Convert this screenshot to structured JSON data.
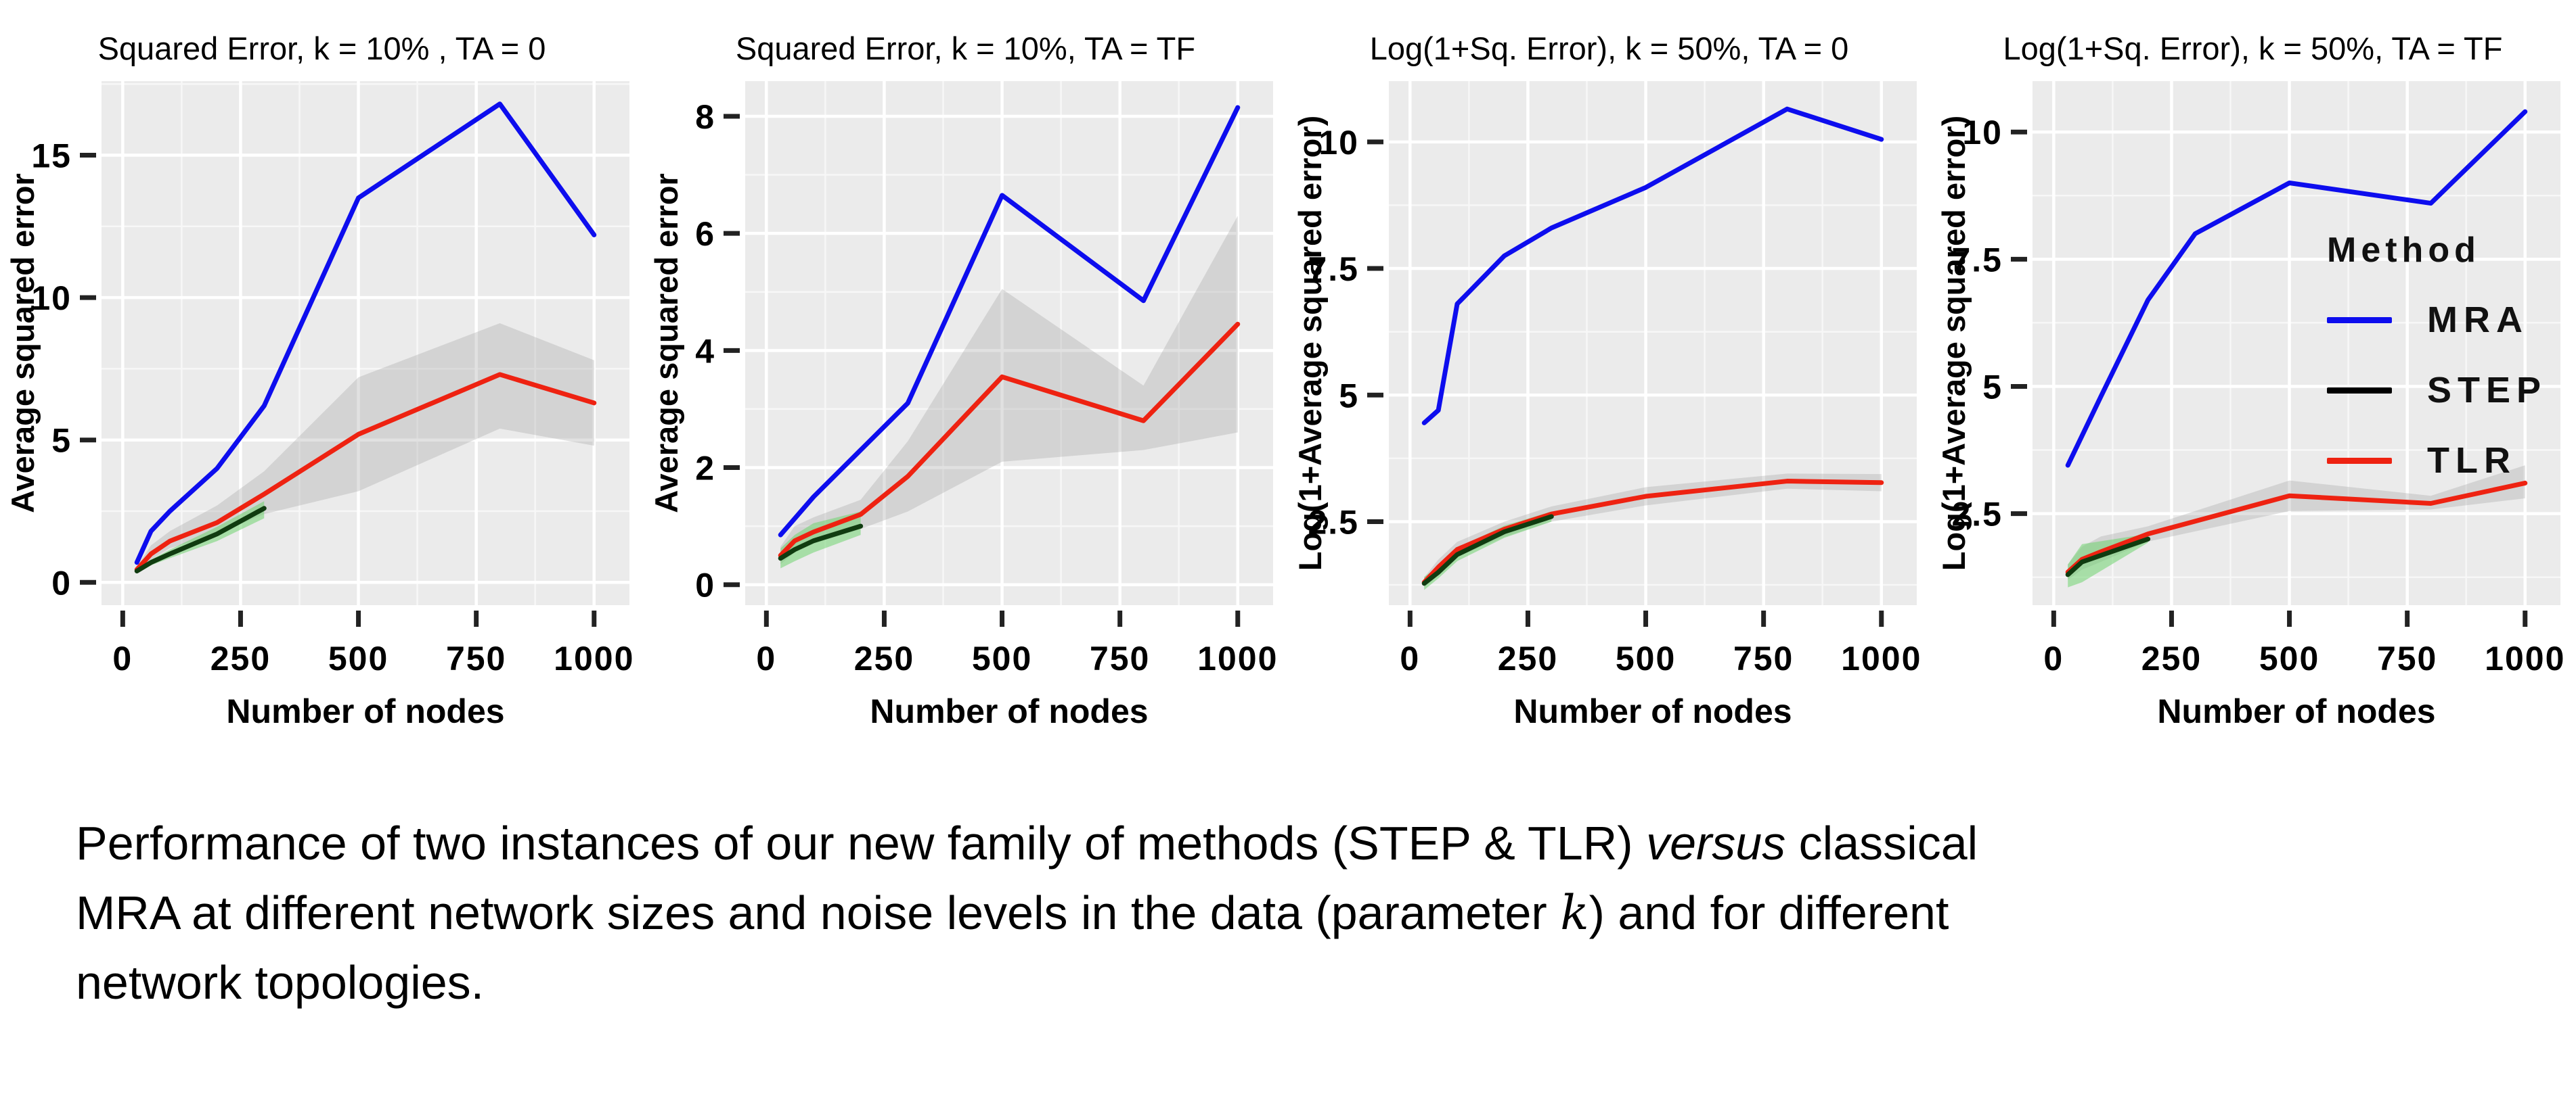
{
  "legend": {
    "title": "Method",
    "items": [
      {
        "label": "MRA",
        "color": "#0d0dee"
      },
      {
        "label": "STEP",
        "color": "#000000"
      },
      {
        "label": "TLR",
        "color": "#ee2211"
      }
    ]
  },
  "caption": {
    "lines": [
      [
        {
          "t": "Performance of two instances of our new family of methods (STEP & TLR) "
        },
        {
          "t": "versus",
          "em": true
        },
        {
          "t": " classical"
        }
      ],
      [
        {
          "t": "MRA at different network sizes and noise levels in the data (parameter "
        },
        {
          "t": "k",
          "math": true
        },
        {
          "t": ") and for different"
        }
      ],
      [
        {
          "t": "network topologies."
        }
      ]
    ]
  },
  "chart_data": [
    {
      "type": "line",
      "title": "Squared Error, k = 10% , TA = 0",
      "xlabel": "Number of nodes",
      "ylabel": "Average squared error",
      "xlim": [
        -45,
        1075
      ],
      "ylim": [
        -0.8,
        17.6
      ],
      "xticks": [
        0,
        250,
        500,
        750,
        1000
      ],
      "xtick_labels": [
        "0",
        "250",
        "500",
        "750",
        "1000"
      ],
      "yticks": [
        0,
        5,
        10,
        15
      ],
      "ytick_labels": [
        "0",
        "5",
        "10",
        "15"
      ],
      "x_minor": [
        125,
        375,
        625,
        875
      ],
      "y_minor": [
        2.5,
        7.5,
        12.5,
        17.5
      ],
      "grid": true,
      "panel_bg": "#ebebeb",
      "legend_position": "none",
      "series": [
        {
          "name": "TLR",
          "color": "#ee2211",
          "x": [
            30,
            60,
            100,
            200,
            300,
            500,
            800,
            1000
          ],
          "values": [
            0.45,
            1.0,
            1.45,
            2.1,
            3.1,
            5.2,
            7.3,
            6.3
          ],
          "band": {
            "lower": [
              0.35,
              0.8,
              1.2,
              1.7,
              2.4,
              3.2,
              5.4,
              4.8
            ],
            "upper": [
              0.55,
              1.3,
              1.8,
              2.7,
              3.9,
              7.2,
              9.1,
              7.8
            ],
            "color": "#9a9a9a",
            "opacity": 0.3
          }
        },
        {
          "name": "STEP",
          "color": "#103c10",
          "x": [
            30,
            60,
            100,
            200,
            300
          ],
          "values": [
            0.4,
            0.7,
            1.0,
            1.7,
            2.6
          ],
          "band": {
            "lower": [
              0.33,
              0.6,
              0.85,
              1.45,
              2.25
            ],
            "upper": [
              0.47,
              0.8,
              1.15,
              1.95,
              2.85
            ],
            "color": "#6fd36f",
            "opacity": 0.55
          }
        },
        {
          "name": "MRA",
          "color": "#0d0dee",
          "x": [
            30,
            60,
            100,
            200,
            300,
            500,
            800,
            1000
          ],
          "values": [
            0.7,
            1.8,
            2.5,
            4.0,
            6.2,
            13.5,
            16.8,
            12.2
          ]
        }
      ]
    },
    {
      "type": "line",
      "title": "Squared Error, k = 10%, TA = TF",
      "xlabel": "Number of nodes",
      "ylabel": "Average squared error",
      "xlim": [
        -45,
        1075
      ],
      "ylim": [
        -0.35,
        8.6
      ],
      "xticks": [
        0,
        250,
        500,
        750,
        1000
      ],
      "xtick_labels": [
        "0",
        "250",
        "500",
        "750",
        "1000"
      ],
      "yticks": [
        0,
        2,
        4,
        6,
        8
      ],
      "ytick_labels": [
        "0",
        "2",
        "4",
        "6",
        "8"
      ],
      "x_minor": [
        125,
        375,
        625,
        875
      ],
      "y_minor": [
        1,
        3,
        5,
        7
      ],
      "grid": true,
      "panel_bg": "#ebebeb",
      "legend_position": "none",
      "series": [
        {
          "name": "TLR",
          "color": "#ee2211",
          "x": [
            30,
            60,
            100,
            200,
            300,
            500,
            800,
            1000
          ],
          "values": [
            0.5,
            0.75,
            0.9,
            1.2,
            1.85,
            3.55,
            2.8,
            4.45
          ],
          "band": {
            "lower": [
              0.35,
              0.55,
              0.7,
              0.95,
              1.25,
              2.1,
              2.3,
              2.6
            ],
            "upper": [
              0.65,
              1.0,
              1.15,
              1.45,
              2.45,
              5.05,
              3.4,
              6.3
            ],
            "color": "#9a9a9a",
            "opacity": 0.3
          }
        },
        {
          "name": "STEP",
          "color": "#103c10",
          "x": [
            30,
            60,
            100,
            200
          ],
          "values": [
            0.45,
            0.6,
            0.75,
            1.0
          ],
          "band": {
            "lower": [
              0.28,
              0.4,
              0.55,
              0.85
            ],
            "upper": [
              0.62,
              0.85,
              1.05,
              1.25
            ],
            "color": "#6fd36f",
            "opacity": 0.55
          }
        },
        {
          "name": "MRA",
          "color": "#0d0dee",
          "x": [
            30,
            100,
            200,
            300,
            500,
            800,
            1000
          ],
          "values": [
            0.85,
            1.5,
            2.3,
            3.1,
            6.65,
            4.85,
            8.15
          ]
        }
      ]
    },
    {
      "type": "line",
      "title": "Log(1+Sq. Error), k = 50%, TA = 0",
      "xlabel": "Number of nodes",
      "ylabel": "Log(1+Average squared error)",
      "xlim": [
        -45,
        1075
      ],
      "ylim": [
        0.85,
        11.2
      ],
      "xticks": [
        0,
        250,
        500,
        750,
        1000
      ],
      "xtick_labels": [
        "0",
        "250",
        "500",
        "750",
        "1000"
      ],
      "yticks": [
        2.5,
        5,
        7.5,
        10
      ],
      "ytick_labels": [
        "2.5",
        "5",
        "7.5",
        "10"
      ],
      "x_minor": [
        125,
        375,
        625,
        875
      ],
      "y_minor": [
        1.25,
        3.75,
        6.25,
        8.75
      ],
      "grid": true,
      "panel_bg": "#ebebeb",
      "legend_position": "none",
      "series": [
        {
          "name": "TLR",
          "color": "#ee2211",
          "x": [
            30,
            60,
            100,
            200,
            300,
            500,
            800,
            1000
          ],
          "values": [
            1.3,
            1.6,
            1.95,
            2.35,
            2.65,
            3.0,
            3.3,
            3.27
          ],
          "band": {
            "lower": [
              1.2,
              1.45,
              1.8,
              2.2,
              2.5,
              2.82,
              3.15,
              3.1
            ],
            "upper": [
              1.4,
              1.75,
              2.1,
              2.5,
              2.8,
              3.18,
              3.45,
              3.44
            ],
            "color": "#9a9a9a",
            "opacity": 0.3
          }
        },
        {
          "name": "STEP",
          "color": "#103c10",
          "x": [
            30,
            60,
            100,
            200,
            300
          ],
          "values": [
            1.28,
            1.5,
            1.85,
            2.3,
            2.6
          ],
          "band": {
            "lower": [
              1.15,
              1.38,
              1.72,
              2.18,
              2.5
            ],
            "upper": [
              1.41,
              1.62,
              1.98,
              2.42,
              2.7
            ],
            "color": "#6fd36f",
            "opacity": 0.55
          }
        },
        {
          "name": "MRA",
          "color": "#0d0dee",
          "x": [
            30,
            60,
            100,
            200,
            300,
            500,
            800,
            1000
          ],
          "values": [
            4.45,
            4.7,
            6.8,
            7.75,
            8.3,
            9.1,
            10.65,
            10.05
          ]
        }
      ]
    },
    {
      "type": "line",
      "title": "Log(1+Sq. Error), k = 50%, TA = TF",
      "xlabel": "Number of nodes",
      "ylabel": "Log(1+Average squared error)",
      "xlim": [
        -45,
        1075
      ],
      "ylim": [
        0.7,
        11.0
      ],
      "xticks": [
        0,
        250,
        500,
        750,
        1000
      ],
      "xtick_labels": [
        "0",
        "250",
        "500",
        "750",
        "1000"
      ],
      "yticks": [
        2.5,
        5,
        7.5,
        10
      ],
      "ytick_labels": [
        "2.5",
        "5",
        "7.5",
        "10"
      ],
      "x_minor": [
        125,
        375,
        625,
        875
      ],
      "y_minor": [
        1.25,
        3.75,
        6.25,
        8.75
      ],
      "grid": true,
      "panel_bg": "#ebebeb",
      "legend_position": "inside-right",
      "series": [
        {
          "name": "TLR",
          "color": "#ee2211",
          "x": [
            30,
            60,
            100,
            200,
            300,
            500,
            800,
            1000
          ],
          "values": [
            1.35,
            1.6,
            1.75,
            2.1,
            2.35,
            2.85,
            2.7,
            3.1
          ],
          "band": {
            "lower": [
              1.2,
              1.4,
              1.55,
              1.95,
              2.15,
              2.55,
              2.58,
              2.8
            ],
            "upper": [
              1.5,
              1.85,
              2.05,
              2.25,
              2.55,
              3.15,
              2.85,
              3.45
            ],
            "color": "#9a9a9a",
            "opacity": 0.3
          }
        },
        {
          "name": "STEP",
          "color": "#103c10",
          "x": [
            30,
            60,
            200
          ],
          "values": [
            1.3,
            1.55,
            2.0
          ],
          "band": {
            "lower": [
              1.05,
              1.15,
              1.93
            ],
            "upper": [
              1.5,
              1.9,
              2.1
            ],
            "color": "#6fd36f",
            "opacity": 0.55
          }
        },
        {
          "name": "MRA",
          "color": "#0d0dee",
          "x": [
            30,
            100,
            200,
            300,
            500,
            800,
            1000
          ],
          "values": [
            3.45,
            4.8,
            6.7,
            8.0,
            9.0,
            8.6,
            10.4
          ]
        }
      ]
    }
  ]
}
